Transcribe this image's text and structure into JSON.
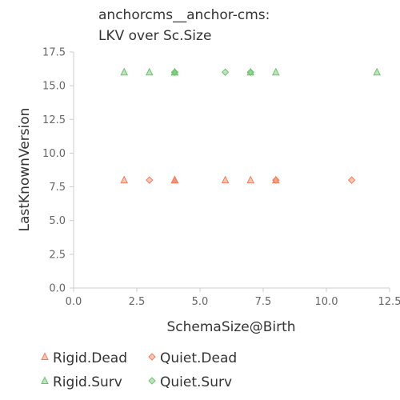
{
  "chart_data": {
    "type": "scatter",
    "title": [
      "anchorcms__anchor-cms:",
      "LKV over Sc.Size"
    ],
    "xlabel": "SchemaSize@Birth",
    "ylabel": "LastKnownVersion",
    "xlim": [
      0,
      12.5
    ],
    "ylim": [
      0,
      17.5
    ],
    "xticks": [
      "0.0",
      "2.5",
      "5.0",
      "7.5",
      "10.0",
      "12.5"
    ],
    "yticks": [
      "0.0",
      "2.5",
      "5.0",
      "7.5",
      "10.0",
      "12.5",
      "15.0",
      "17.5"
    ],
    "grid": false,
    "legend_position": "bottom",
    "series": [
      {
        "name": "Rigid.Dead",
        "marker": "triangle",
        "color": "#f08060",
        "points": [
          [
            2,
            8
          ],
          [
            4,
            8
          ],
          [
            4,
            8
          ],
          [
            4,
            8
          ],
          [
            6,
            8
          ],
          [
            7,
            8
          ],
          [
            8,
            8
          ]
        ]
      },
      {
        "name": "Quiet.Dead",
        "marker": "diamond",
        "color": "#f08060",
        "points": [
          [
            3,
            8
          ],
          [
            8,
            8
          ],
          [
            11,
            8
          ]
        ]
      },
      {
        "name": "Rigid.Surv",
        "marker": "triangle",
        "color": "#6cc46c",
        "points": [
          [
            2,
            16
          ],
          [
            3,
            16
          ],
          [
            4,
            16
          ],
          [
            4,
            16
          ],
          [
            7,
            16
          ],
          [
            8,
            16
          ],
          [
            12,
            16
          ]
        ]
      },
      {
        "name": "Quiet.Surv",
        "marker": "diamond",
        "color": "#6cc46c",
        "points": [
          [
            4,
            16
          ],
          [
            6,
            16
          ],
          [
            7,
            16
          ]
        ]
      }
    ]
  }
}
